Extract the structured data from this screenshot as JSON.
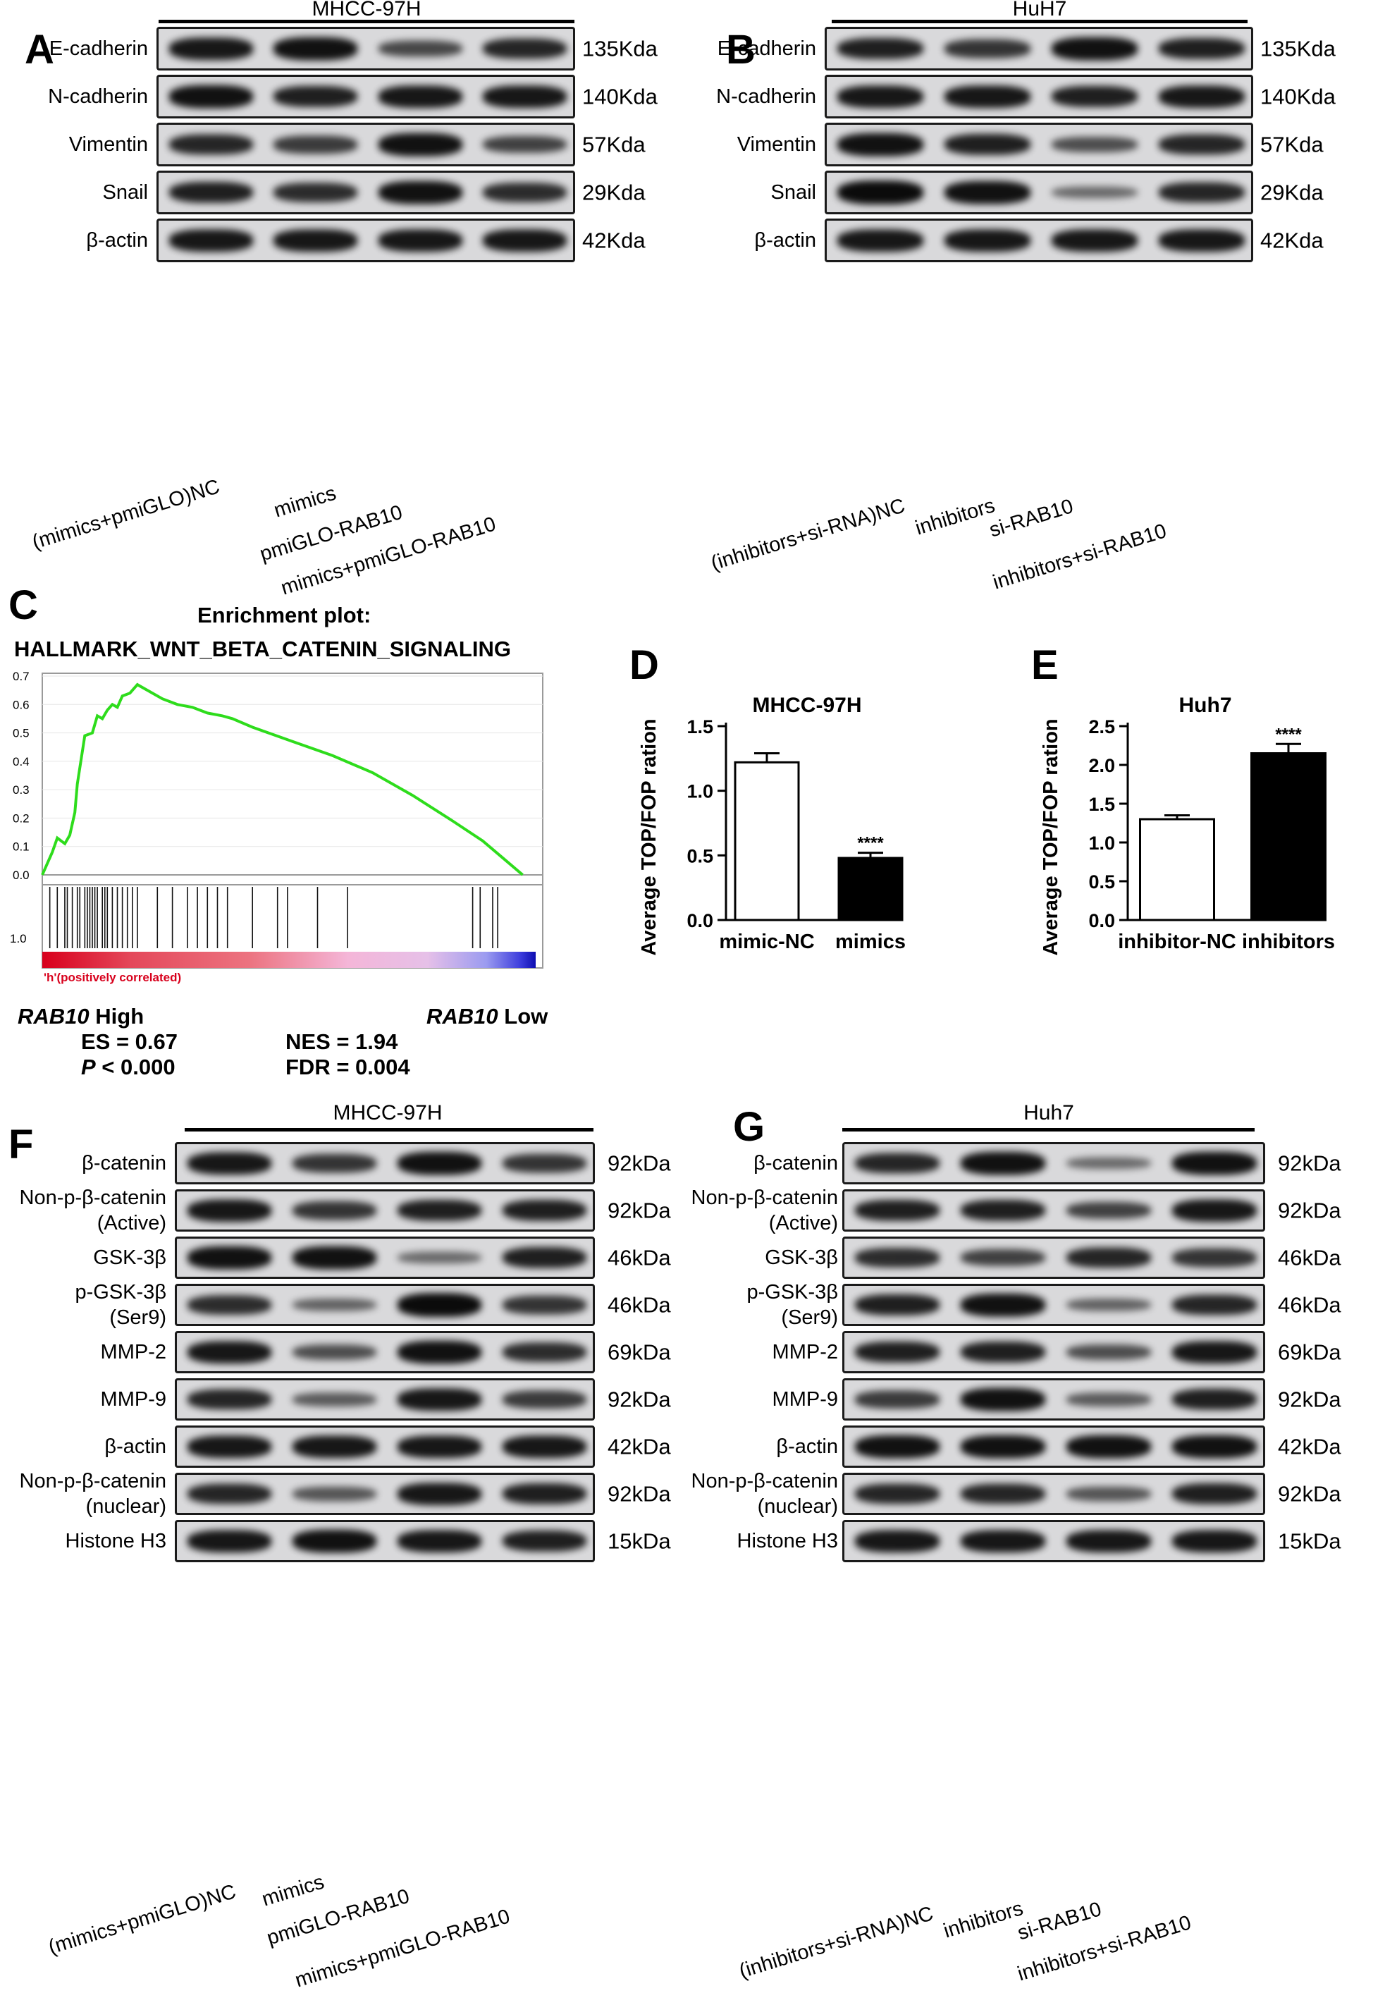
{
  "panel_letters": {
    "A": "A",
    "B": "B",
    "C": "C",
    "D": "D",
    "E": "E",
    "F": "F",
    "G": "G"
  },
  "panelA": {
    "cell_line": "MHCC-97H",
    "rows": [
      {
        "label": "E-cadherin",
        "size": "135Kda",
        "bands": [
          0.9,
          0.95,
          0.55,
          0.8
        ]
      },
      {
        "label": "N-cadherin",
        "size": "140Kda",
        "bands": [
          0.95,
          0.85,
          0.9,
          0.9
        ]
      },
      {
        "label": "Vimentin",
        "size": "57Kda",
        "bands": [
          0.8,
          0.65,
          0.95,
          0.6
        ]
      },
      {
        "label": "Snail",
        "size": "29Kda",
        "bands": [
          0.85,
          0.75,
          0.95,
          0.75
        ]
      },
      {
        "label": "β-actin",
        "size": "42Kda",
        "bands": [
          0.9,
          0.9,
          0.9,
          0.9
        ]
      }
    ],
    "lanes": [
      "(mimics+pmiGLO)NC",
      "mimics",
      "pmiGLO-RAB10",
      "mimics+pmiGLO-RAB10"
    ]
  },
  "panelB": {
    "cell_line": "HuH7",
    "rows": [
      {
        "label": "E-cadherin",
        "size": "135Kda",
        "bands": [
          0.85,
          0.7,
          0.95,
          0.85
        ]
      },
      {
        "label": "N-cadherin",
        "size": "140Kda",
        "bands": [
          0.9,
          0.9,
          0.85,
          0.9
        ]
      },
      {
        "label": "Vimentin",
        "size": "57Kda",
        "bands": [
          0.95,
          0.85,
          0.5,
          0.8
        ]
      },
      {
        "label": "Snail",
        "size": "29Kda",
        "bands": [
          1.0,
          0.95,
          0.3,
          0.8
        ]
      },
      {
        "label": "β-actin",
        "size": "42Kda",
        "bands": [
          0.9,
          0.9,
          0.9,
          0.9
        ]
      }
    ],
    "lanes": [
      "(inhibitors+si-RNA)NC",
      "inhibitors",
      "si-RAB10",
      "inhibitors+si-RAB10"
    ]
  },
  "panelC": {
    "title_line1": "Enrichment plot:",
    "title_line2": "HALLMARK_WNT_BETA_CATENIN_SIGNALING",
    "y_ticks": [
      "0.7",
      "0.6",
      "0.5",
      "0.4",
      "0.3",
      "0.2",
      "0.1",
      "0.0"
    ],
    "rank_tick": "1.0",
    "correlation_note": "'h'(positively correlated)",
    "high_label_gene": "RAB10",
    "high_label_suffix": " High",
    "low_label_gene": "RAB10",
    "low_label_suffix": " Low",
    "es": "ES = 0.67",
    "p_prefix": "P",
    "p_rest": " < 0.000",
    "nes": "NES = 1.94",
    "fdr": "FDR = 0.004"
  },
  "panelD": {
    "title": "MHCC-97H",
    "ylabel": "Average TOP/FOP ration",
    "y_ticks": [
      "0.0",
      "0.5",
      "1.0",
      "1.5"
    ],
    "significance": "****",
    "chart_data": {
      "type": "bar",
      "categories": [
        "mimic-NC",
        "mimics"
      ],
      "values": [
        1.22,
        0.48
      ],
      "errors": [
        0.07,
        0.04
      ],
      "ylim": [
        0,
        1.5
      ],
      "colors": [
        "#ffffff",
        "#000000"
      ]
    }
  },
  "panelE": {
    "title": "Huh7",
    "ylabel": "Average TOP/FOP ration",
    "y_ticks": [
      "0.0",
      "0.5",
      "1.0",
      "1.5",
      "2.0",
      "2.5"
    ],
    "significance": "****",
    "chart_data": {
      "type": "bar",
      "categories": [
        "inhibitor-NC",
        "inhibitors"
      ],
      "values": [
        1.3,
        2.15
      ],
      "errors": [
        0.05,
        0.12
      ],
      "ylim": [
        0,
        2.5
      ],
      "colors": [
        "#ffffff",
        "#000000"
      ]
    }
  },
  "panelF": {
    "cell_line": "MHCC-97H",
    "rows": [
      {
        "label": "β-catenin",
        "size": "92kDa",
        "bands": [
          0.9,
          0.7,
          0.95,
          0.7
        ]
      },
      {
        "label": "Non-p-β-catenin\n(Active)",
        "size": "92kDa",
        "bands": [
          0.9,
          0.7,
          0.85,
          0.85
        ]
      },
      {
        "label": "GSK-3β",
        "size": "46kDa",
        "bands": [
          0.95,
          0.95,
          0.3,
          0.85
        ]
      },
      {
        "label": "p-GSK-3β\n(Ser9)",
        "size": "46kDa",
        "bands": [
          0.75,
          0.35,
          1.0,
          0.7
        ]
      },
      {
        "label": "MMP-2",
        "size": "69kDa",
        "bands": [
          0.9,
          0.5,
          0.95,
          0.75
        ]
      },
      {
        "label": "MMP-9",
        "size": "92kDa",
        "bands": [
          0.8,
          0.4,
          0.9,
          0.65
        ]
      },
      {
        "label": "β-actin",
        "size": "42kDa",
        "bands": [
          0.9,
          0.9,
          0.9,
          0.9
        ]
      },
      {
        "label": "Non-p-β-catenin\n(nuclear)",
        "size": "92kDa",
        "bands": [
          0.8,
          0.45,
          0.9,
          0.85
        ]
      },
      {
        "label": "Histone H3",
        "size": "15kDa",
        "bands": [
          0.9,
          0.95,
          0.9,
          0.85
        ]
      }
    ],
    "lanes": [
      "(mimics+pmiGLO)NC",
      "mimics",
      "pmiGLO-RAB10",
      "mimics+pmiGLO-RAB10"
    ]
  },
  "panelG": {
    "cell_line": "Huh7",
    "rows": [
      {
        "label": "β-catenin",
        "size": "92kDa",
        "bands": [
          0.8,
          0.95,
          0.3,
          0.95
        ]
      },
      {
        "label": "Non-p-β-catenin\n(Active)",
        "size": "92kDa",
        "bands": [
          0.85,
          0.85,
          0.6,
          0.9
        ]
      },
      {
        "label": "GSK-3β",
        "size": "46kDa",
        "bands": [
          0.75,
          0.6,
          0.8,
          0.7
        ]
      },
      {
        "label": "p-GSK-3β\n(Ser9)",
        "size": "46kDa",
        "bands": [
          0.85,
          0.95,
          0.35,
          0.8
        ]
      },
      {
        "label": "MMP-2",
        "size": "69kDa",
        "bands": [
          0.85,
          0.85,
          0.5,
          0.9
        ]
      },
      {
        "label": "MMP-9",
        "size": "92kDa",
        "bands": [
          0.65,
          0.95,
          0.4,
          0.85
        ]
      },
      {
        "label": "β-actin",
        "size": "42kDa",
        "bands": [
          0.95,
          0.95,
          0.95,
          0.95
        ]
      },
      {
        "label": "Non-p-β-catenin\n(nuclear)",
        "size": "92kDa",
        "bands": [
          0.8,
          0.8,
          0.45,
          0.85
        ]
      },
      {
        "label": "Histone H3",
        "size": "15kDa",
        "bands": [
          0.9,
          0.9,
          0.9,
          0.9
        ]
      }
    ],
    "lanes": [
      "(inhibitors+si-RNA)NC",
      "inhibitors",
      "si-RAB10",
      "inhibitors+si-RAB10"
    ]
  }
}
